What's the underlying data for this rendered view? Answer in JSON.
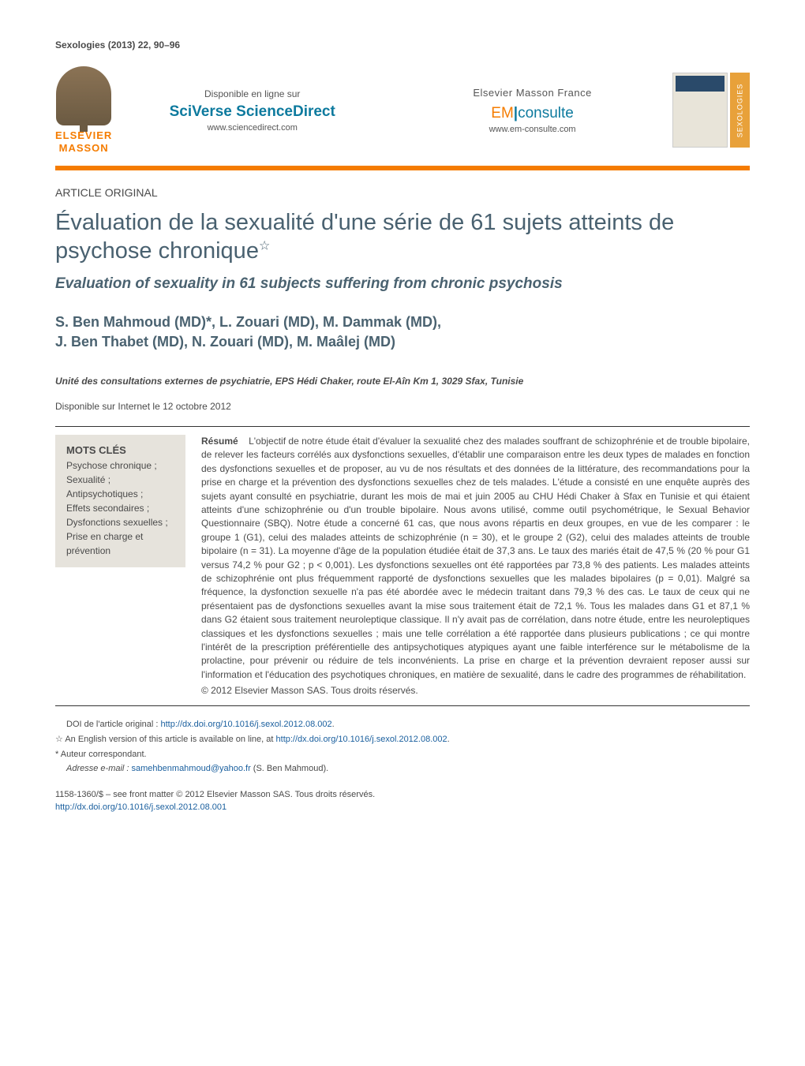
{
  "journal_citation": "Sexologies (2013) 22, 90–96",
  "header": {
    "elsevier_brand": "ELSEVIER\nMASSON",
    "online_label": "Disponible en ligne sur",
    "sciencedirect_label": "SciVerse ScienceDirect",
    "sciencedirect_url": "www.sciencedirect.com",
    "em_label": "Elsevier Masson France",
    "em_brand_1": "EM",
    "em_brand_2": "consulte",
    "em_url": "www.em-consulte.com",
    "spine_text": "SEXOLOGIES",
    "accent_color": "#f57c00",
    "title_color": "#496170",
    "sd_color": "#0d7a9e",
    "keywords_bg": "#e6e3dc"
  },
  "article": {
    "type_label": "ARTICLE ORIGINAL",
    "title": "Évaluation de la sexualité d'une série de 61 sujets atteints de psychose chronique",
    "title_star": "☆",
    "subtitle": "Evaluation of sexuality in 61 subjects suffering from chronic psychosis",
    "authors_line1": "S. Ben Mahmoud (MD)*, L. Zouari (MD), M. Dammak (MD),",
    "authors_line2": "J. Ben Thabet (MD), N. Zouari (MD), M. Maâlej (MD)",
    "affiliation": "Unité des consultations externes de psychiatrie, EPS Hédi Chaker, route El-Aîn Km 1, 3029 Sfax, Tunisie",
    "online_date": "Disponible sur Internet le 12 octobre 2012"
  },
  "keywords": {
    "heading": "MOTS CLÉS",
    "items": "Psychose chronique ;\nSexualité ;\nAntipsychotiques ;\nEffets secondaires ;\nDysfonctions sexuelles ;\nPrise en charge et prévention"
  },
  "abstract": {
    "label": "Résumé",
    "body": "L'objectif de notre étude était d'évaluer la sexualité chez des malades souffrant de schizophrénie et de trouble bipolaire, de relever les facteurs corrélés aux dysfonctions sexuelles, d'établir une comparaison entre les deux types de malades en fonction des dysfonctions sexuelles et de proposer, au vu de nos résultats et des données de la littérature, des recommandations pour la prise en charge et la prévention des dysfonctions sexuelles chez de tels malades. L'étude a consisté en une enquête auprès des sujets ayant consulté en psychiatrie, durant les mois de mai et juin 2005 au CHU Hédi Chaker à Sfax en Tunisie et qui étaient atteints d'une schizophrénie ou d'un trouble bipolaire. Nous avons utilisé, comme outil psychométrique, le Sexual Behavior Questionnaire (SBQ). Notre étude a concerné 61 cas, que nous avons répartis en deux groupes, en vue de les comparer : le groupe 1 (G1), celui des malades atteints de schizophrénie (n = 30), et le groupe 2 (G2), celui des malades atteints de trouble bipolaire (n = 31). La moyenne d'âge de la population étudiée était de 37,3 ans. Le taux des mariés était de 47,5 % (20 % pour G1 versus 74,2 % pour G2 ; p < 0,001). Les dysfonctions sexuelles ont été rapportées par 73,8 % des patients. Les malades atteints de schizophrénie ont plus fréquemment rapporté de dysfonctions sexuelles que les malades bipolaires (p = 0,01). Malgré sa fréquence, la dysfonction sexuelle n'a pas été abordée avec le médecin traitant dans 79,3 % des cas. Le taux de ceux qui ne présentaient pas de dysfonctions sexuelles avant la mise sous traitement était de 72,1 %. Tous les malades dans G1 et 87,1 % dans G2 étaient sous traitement neuroleptique classique. Il n'y avait pas de corrélation, dans notre étude, entre les neuroleptiques classiques et les dysfonctions sexuelles ; mais une telle corrélation a été rapportée dans plusieurs publications ; ce qui montre l'intérêt de la prescription préférentielle des antipsychotiques atypiques ayant une faible interférence sur le métabolisme de la prolactine, pour prévenir ou réduire de tels inconvénients. La prise en charge et la prévention devraient reposer aussi sur l'information et l'éducation des psychotiques chroniques, en matière de sexualité, dans le cadre des programmes de réhabilitation.",
    "copyright": "© 2012 Elsevier Masson SAS. Tous droits réservés."
  },
  "footnotes": {
    "doi_original_label": "DOI de l'article original : ",
    "doi_original_url": "http://dx.doi.org/10.1016/j.sexol.2012.08.002",
    "star_note": "An English version of this article is available on line, at ",
    "star_note_url": "http://dx.doi.org/10.1016/j.sexol.2012.08.002",
    "corr_label": "Auteur correspondant.",
    "email_label": "Adresse e-mail : ",
    "email": "samehbenmahmoud@yahoo.fr",
    "email_author": " (S. Ben Mahmoud)."
  },
  "footer": {
    "issn_line": "1158-1360/$ – see front matter © 2012 Elsevier Masson SAS. Tous droits réservés.",
    "doi_url": "http://dx.doi.org/10.1016/j.sexol.2012.08.001"
  }
}
